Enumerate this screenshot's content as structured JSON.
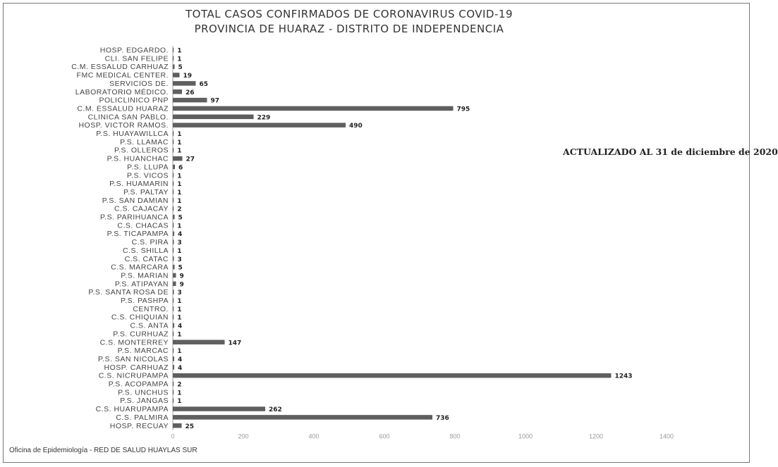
{
  "chart_data": {
    "type": "bar",
    "orientation": "horizontal",
    "title": "TOTAL CASOS CONFIRMADOS DE CORONAVIRUS COVID-19",
    "subtitle": "PROVINCIA DE HUARAZ - DISTRITO DE INDEPENDENCIA",
    "annotation": "ACTUALIZADO AL 31 de diciembre de 2020",
    "source": "Oficina de Epidemiología - RED DE SALUD HUAYLAS SUR",
    "xlim": [
      0,
      1400
    ],
    "xticks": [
      0,
      200,
      400,
      600,
      800,
      1000,
      1200,
      1400
    ],
    "grid": false,
    "legend": "none",
    "categories": [
      "HOSP. EDGARDO.",
      "CLI. SAN FELIPE",
      "C.M. ESSALUD CARHUAZ",
      "FMC MEDICAL CENTER.",
      "SERVICIOS DE.",
      "LABORATORIO MÉDICO.",
      "POLICLINICO PNP",
      "C.M. ESSALUD HUARAZ",
      "CLINICA SAN PABLO.",
      "HOSP. VICTOR RAMOS.",
      "P.S. HUAYAWILLCA",
      "P.S. LLAMAC",
      "P.S. OLLEROS",
      "P.S. HUANCHAC",
      "P.S. LLUPA",
      "P.S. VICOS",
      "P.S. HUAMARIN",
      "P.S. PALTAY",
      "P.S. SAN DAMIAN",
      "C.S. CAJACAY",
      "P.S. PARIHUANCA",
      "C.S. CHACAS",
      "P.S. TICAPAMPA",
      "C.S. PIRA",
      "C.S. SHILLA",
      "C.S. CATAC",
      "C.S. MARCARA",
      "P.S. MARIAN",
      "P.S. ATIPAYAN",
      "P.S. SANTA ROSA DE",
      "P.S. PASHPA",
      "CENTRO.",
      "C.S. CHIQUIAN",
      "C.S. ANTA",
      "P.S. CURHUAZ",
      "C.S. MONTERREY",
      "P.S. MARCAC",
      "P.S. SAN NICOLAS",
      "HOSP. CARHUAZ",
      "C.S. NICRUPAMPA",
      "P.S. ACOPAMPA",
      "P.S. UNCHUS",
      "P.S. JANGAS",
      "C.S. HUARUPAMPA",
      "C.S. PALMIRA",
      "HOSP. RECUAY"
    ],
    "values": [
      1,
      1,
      5,
      19,
      65,
      26,
      97,
      795,
      229,
      490,
      1,
      1,
      1,
      27,
      6,
      1,
      1,
      1,
      1,
      2,
      5,
      1,
      4,
      3,
      1,
      3,
      5,
      9,
      9,
      3,
      1,
      1,
      1,
      4,
      1,
      147,
      1,
      4,
      4,
      1243,
      2,
      1,
      1,
      262,
      736,
      25
    ],
    "colors": {
      "bar": "#5f5f5f"
    }
  }
}
